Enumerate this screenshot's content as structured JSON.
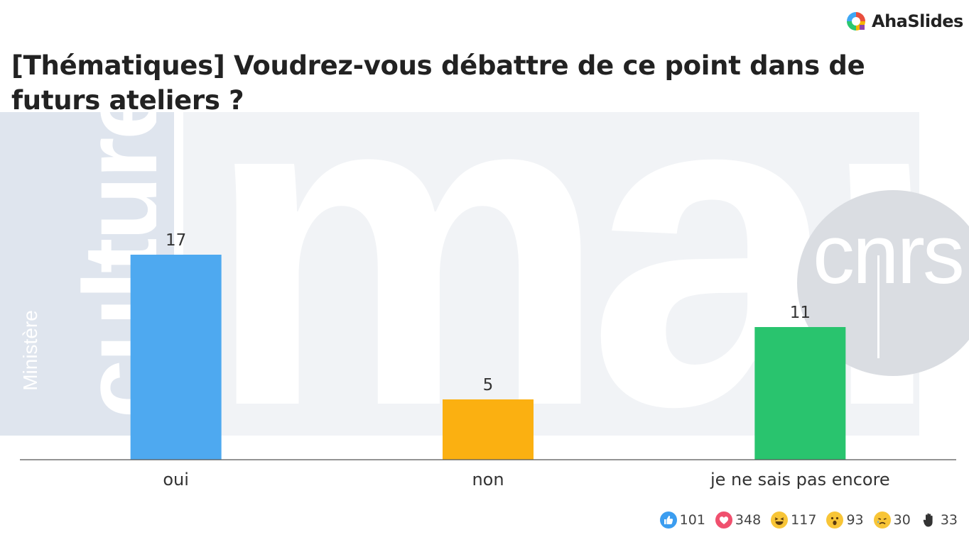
{
  "brand": {
    "name": "AhaSlides",
    "logo_colors": [
      "#e94e3d",
      "#f5b400",
      "#2ac76f",
      "#3fa7f5",
      "#8e44ad"
    ]
  },
  "slide": {
    "title": "[Thématiques] Voudrez-vous débattre de ce point dans de futurs ateliers ?"
  },
  "background": {
    "culture_text": "culture",
    "ministere_text": "Ministère",
    "mar_text": "mar",
    "cnrs_text": "cnrs"
  },
  "chart_data": {
    "type": "bar",
    "title": "",
    "xlabel": "",
    "ylabel": "",
    "categories": [
      "oui",
      "non",
      "je ne sais pas encore"
    ],
    "values": [
      17,
      5,
      11
    ],
    "colors": [
      "#4ea9f0",
      "#fbb011",
      "#29c46e"
    ],
    "ylim": [
      0,
      17
    ],
    "grid": false,
    "data_labels": true
  },
  "reactions": [
    {
      "icon": "thumbs-up-icon",
      "count": "101",
      "color": "#3b9df0"
    },
    {
      "icon": "heart-icon",
      "count": "348",
      "color": "#f0506e"
    },
    {
      "icon": "laughing-face-icon",
      "count": "117",
      "color": "#f8c537"
    },
    {
      "icon": "surprised-face-icon",
      "count": "93",
      "color": "#f8c537"
    },
    {
      "icon": "sad-face-icon",
      "count": "30",
      "color": "#f8c537"
    },
    {
      "icon": "raised-hand-icon",
      "count": "33",
      "color": "#333333"
    }
  ]
}
